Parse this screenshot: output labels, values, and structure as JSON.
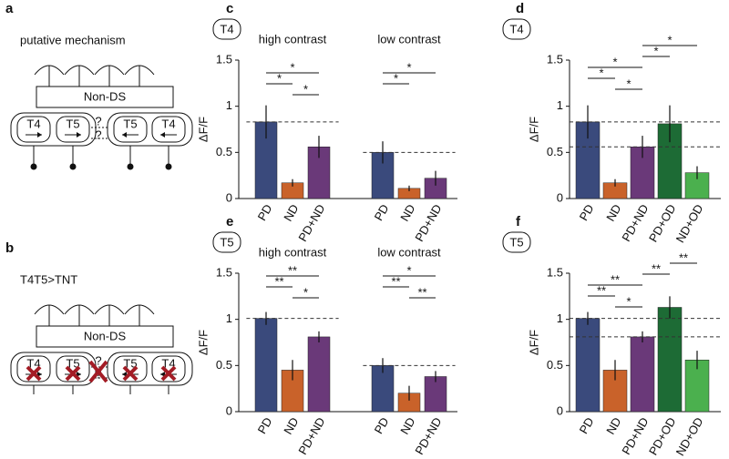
{
  "diagrams": [
    {
      "label": "a",
      "title": "putative mechanism",
      "box": "Non-DS",
      "cells": [
        "T4",
        "T5",
        "T5",
        "T4"
      ],
      "question": "?"
    },
    {
      "label": "b",
      "title": "T4T5>TNT",
      "box": "Non-DS",
      "cells": [
        "T4",
        "T5",
        "T5",
        "T4"
      ],
      "question": "?"
    }
  ],
  "chart_data": [
    {
      "type": "bar",
      "panel": "c",
      "cell": "T4",
      "ylabel": "ΔF/F",
      "ylim": [
        0,
        1.5
      ],
      "yticks": [
        0,
        0.5,
        1,
        1.5
      ],
      "groups": [
        {
          "title": "high contrast",
          "categories": [
            "PD",
            "ND",
            "PD+ND"
          ],
          "values": [
            0.83,
            0.17,
            0.56
          ],
          "errors": [
            0.18,
            0.04,
            0.12
          ],
          "colors": [
            "#3a4a7c",
            "#c9622a",
            "#6a3979"
          ],
          "reference_lines": [
            0.83
          ],
          "significance": [
            {
              "label": "*",
              "pair": [
                "PD",
                "PD+ND"
              ]
            },
            {
              "label": "*",
              "pair": [
                "PD",
                "ND"
              ]
            },
            {
              "label": "*",
              "pair": [
                "ND",
                "PD+ND"
              ]
            }
          ]
        },
        {
          "title": "low contrast",
          "categories": [
            "PD",
            "ND",
            "PD+ND"
          ],
          "values": [
            0.5,
            0.11,
            0.22
          ],
          "errors": [
            0.12,
            0.03,
            0.08
          ],
          "colors": [
            "#3a4a7c",
            "#c9622a",
            "#6a3979"
          ],
          "reference_lines": [
            0.5
          ],
          "significance": [
            {
              "label": "*",
              "pair": [
                "PD",
                "PD+ND"
              ]
            },
            {
              "label": "*",
              "pair": [
                "PD",
                "ND"
              ]
            }
          ]
        }
      ]
    },
    {
      "type": "bar",
      "panel": "d",
      "cell": "T4",
      "ylabel": "ΔF/F",
      "ylim": [
        0,
        1.5
      ],
      "yticks": [
        0,
        0.5,
        1,
        1.5
      ],
      "groups": [
        {
          "categories": [
            "PD",
            "ND",
            "PD+ND",
            "PD+OD",
            "ND+OD"
          ],
          "values": [
            0.83,
            0.17,
            0.56,
            0.81,
            0.28
          ],
          "errors": [
            0.18,
            0.04,
            0.12,
            0.2,
            0.07
          ],
          "colors": [
            "#3a4a7c",
            "#c9622a",
            "#6a3979",
            "#1d6b35",
            "#4bb04e"
          ],
          "reference_lines": [
            0.83,
            0.56
          ],
          "significance": [
            {
              "label": "*",
              "pair": [
                "PD+ND",
                "ND+OD"
              ]
            },
            {
              "label": "*",
              "pair": [
                "PD+ND",
                "PD+OD"
              ]
            },
            {
              "label": "*",
              "pair": [
                "PD",
                "PD+ND"
              ]
            },
            {
              "label": "*",
              "pair": [
                "PD",
                "ND"
              ]
            },
            {
              "label": "*",
              "pair": [
                "ND",
                "PD+ND"
              ]
            }
          ]
        }
      ]
    },
    {
      "type": "bar",
      "panel": "e",
      "cell": "T5",
      "ylabel": "ΔF/F",
      "ylim": [
        0,
        1.5
      ],
      "yticks": [
        0,
        0.5,
        1,
        1.5
      ],
      "groups": [
        {
          "title": "high contrast",
          "categories": [
            "PD",
            "ND",
            "PD+ND"
          ],
          "values": [
            1.01,
            0.45,
            0.81
          ],
          "errors": [
            0.07,
            0.11,
            0.06
          ],
          "colors": [
            "#3a4a7c",
            "#c9622a",
            "#6a3979"
          ],
          "reference_lines": [
            1.01
          ],
          "significance": [
            {
              "label": "**",
              "pair": [
                "PD",
                "PD+ND"
              ]
            },
            {
              "label": "**",
              "pair": [
                "PD",
                "ND"
              ]
            },
            {
              "label": "*",
              "pair": [
                "ND",
                "PD+ND"
              ]
            }
          ]
        },
        {
          "title": "low contrast",
          "categories": [
            "PD",
            "ND",
            "PD+ND"
          ],
          "values": [
            0.5,
            0.2,
            0.38
          ],
          "errors": [
            0.08,
            0.08,
            0.06
          ],
          "colors": [
            "#3a4a7c",
            "#c9622a",
            "#6a3979"
          ],
          "reference_lines": [
            0.5
          ],
          "significance": [
            {
              "label": "*",
              "pair": [
                "PD",
                "PD+ND"
              ]
            },
            {
              "label": "**",
              "pair": [
                "PD",
                "ND"
              ]
            },
            {
              "label": "**",
              "pair": [
                "ND",
                "PD+ND"
              ]
            }
          ]
        }
      ]
    },
    {
      "type": "bar",
      "panel": "f",
      "cell": "T5",
      "ylabel": "ΔF/F",
      "ylim": [
        0,
        1.5
      ],
      "yticks": [
        0,
        0.5,
        1,
        1.5
      ],
      "groups": [
        {
          "categories": [
            "PD",
            "ND",
            "PD+ND",
            "PD+OD",
            "ND+OD"
          ],
          "values": [
            1.01,
            0.45,
            0.81,
            1.13,
            0.56
          ],
          "errors": [
            0.07,
            0.11,
            0.06,
            0.12,
            0.1
          ],
          "colors": [
            "#3a4a7c",
            "#c9622a",
            "#6a3979",
            "#1d6b35",
            "#4bb04e"
          ],
          "reference_lines": [
            1.01,
            0.81
          ],
          "significance": [
            {
              "label": "**",
              "pair": [
                "PD+OD",
                "ND+OD"
              ]
            },
            {
              "label": "**",
              "pair": [
                "PD+ND",
                "PD+OD"
              ]
            },
            {
              "label": "**",
              "pair": [
                "PD",
                "PD+ND"
              ]
            },
            {
              "label": "**",
              "pair": [
                "PD",
                "ND"
              ]
            },
            {
              "label": "*",
              "pair": [
                "ND",
                "PD+ND"
              ]
            }
          ]
        }
      ]
    }
  ]
}
